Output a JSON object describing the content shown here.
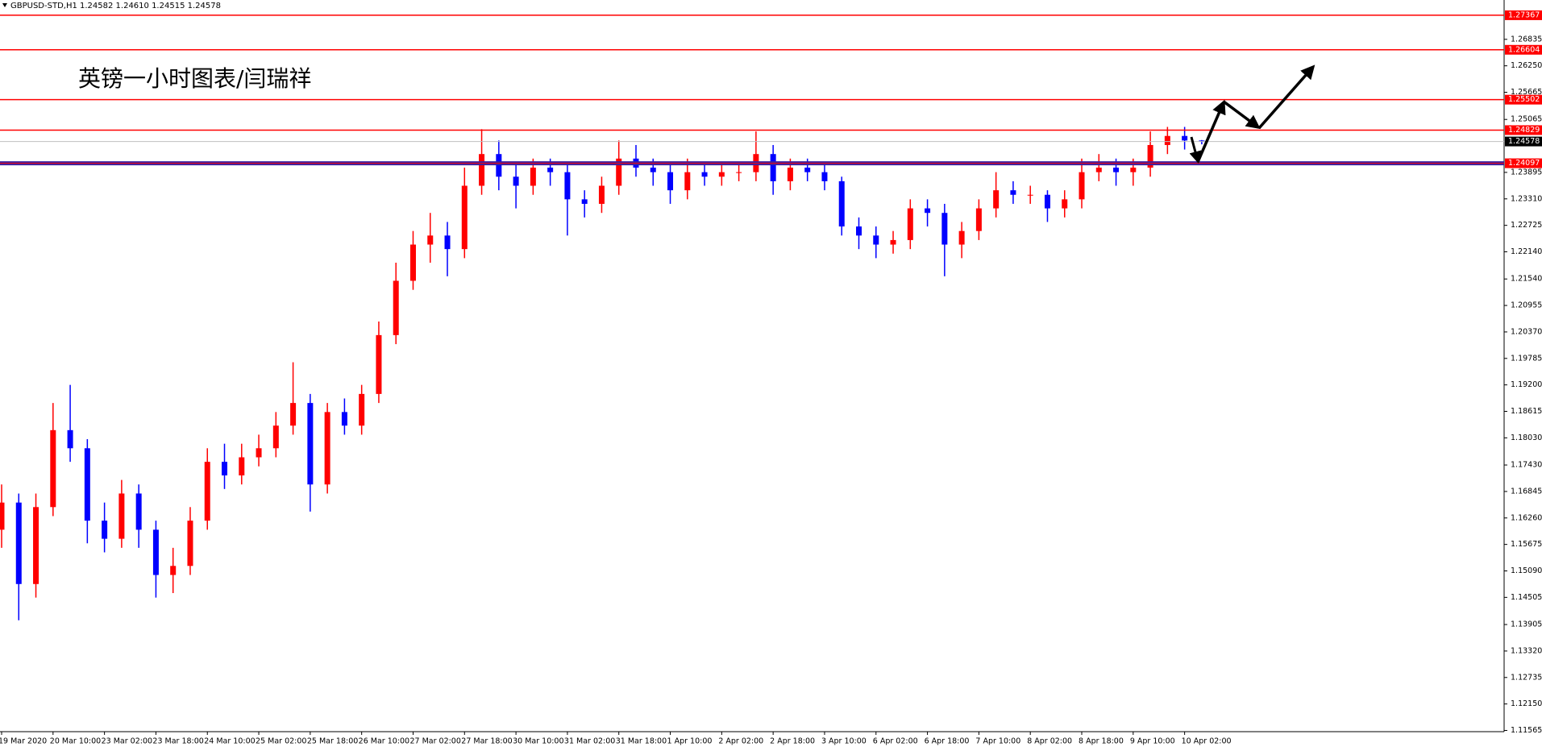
{
  "chart_data": {
    "type": "candlestick",
    "header": "GBPUSD-STD,H1  1.24582 1.24610 1.24515 1.24578",
    "title": "英镑一小时图表/闫瑞祥",
    "categories": [
      "19 Mar 2020",
      null,
      null,
      "20 Mar 10:00",
      null,
      null,
      "23 Mar 02:00",
      null,
      null,
      "23 Mar 18:00",
      null,
      null,
      "24 Mar 10:00",
      null,
      null,
      "25 Mar 02:00",
      null,
      null,
      "25 Mar 18:00",
      null,
      null,
      "26 Mar 10:00",
      null,
      null,
      "27 Mar 02:00",
      null,
      null,
      "27 Mar 18:00",
      null,
      null,
      "30 Mar 10:00",
      null,
      null,
      "31 Mar 02:00",
      null,
      null,
      "31 Mar 18:00",
      null,
      null,
      "1 Apr 10:00",
      null,
      null,
      "2 Apr 02:00",
      null,
      null,
      "2 Apr 18:00",
      null,
      null,
      "3 Apr 10:00",
      null,
      null,
      "6 Apr 02:00",
      null,
      null,
      "6 Apr 18:00",
      null,
      null,
      "7 Apr 10:00",
      null,
      null,
      "8 Apr 02:00",
      null,
      null,
      "8 Apr 18:00",
      null,
      null,
      "9 Apr 10:00",
      null,
      null,
      "10 Apr 02:00",
      null
    ],
    "open": [
      1.16,
      1.166,
      1.148,
      1.165,
      1.182,
      1.178,
      1.162,
      1.158,
      1.168,
      1.16,
      1.15,
      1.152,
      1.162,
      1.175,
      1.172,
      1.176,
      1.178,
      1.183,
      1.188,
      1.17,
      1.186,
      1.183,
      1.19,
      1.203,
      1.215,
      1.223,
      1.225,
      1.222,
      1.236,
      1.243,
      1.238,
      1.236,
      1.24,
      1.239,
      1.233,
      1.232,
      1.236,
      1.242,
      1.24,
      1.239,
      1.235,
      1.239,
      1.238,
      1.239,
      1.239,
      1.243,
      1.237,
      1.24,
      1.239,
      1.237,
      1.227,
      1.225,
      1.223,
      1.224,
      1.231,
      1.23,
      1.223,
      1.226,
      1.231,
      1.235,
      1.234,
      1.234,
      1.231,
      1.233,
      1.239,
      1.24,
      1.239,
      1.24,
      1.245,
      1.247,
      1.246
    ],
    "high": [
      1.17,
      1.168,
      1.168,
      1.188,
      1.192,
      1.18,
      1.166,
      1.171,
      1.17,
      1.162,
      1.156,
      1.165,
      1.178,
      1.179,
      1.179,
      1.181,
      1.186,
      1.197,
      1.19,
      1.188,
      1.189,
      1.192,
      1.206,
      1.219,
      1.226,
      1.23,
      1.228,
      1.24,
      1.2485,
      1.246,
      1.241,
      1.242,
      1.242,
      1.241,
      1.235,
      1.238,
      1.246,
      1.245,
      1.242,
      1.241,
      1.242,
      1.241,
      1.241,
      1.241,
      1.248,
      1.245,
      1.242,
      1.242,
      1.241,
      1.238,
      1.229,
      1.227,
      1.226,
      1.233,
      1.233,
      1.232,
      1.228,
      1.233,
      1.239,
      1.237,
      1.236,
      1.235,
      1.235,
      1.242,
      1.243,
      1.242,
      1.242,
      1.248,
      1.249,
      1.249,
      1.2461
    ],
    "low": [
      1.156,
      1.14,
      1.145,
      1.163,
      1.175,
      1.157,
      1.155,
      1.156,
      1.156,
      1.145,
      1.146,
      1.15,
      1.16,
      1.169,
      1.17,
      1.174,
      1.176,
      1.181,
      1.164,
      1.168,
      1.181,
      1.181,
      1.188,
      1.201,
      1.213,
      1.219,
      1.216,
      1.22,
      1.234,
      1.235,
      1.231,
      1.234,
      1.236,
      1.225,
      1.229,
      1.23,
      1.234,
      1.238,
      1.236,
      1.232,
      1.233,
      1.236,
      1.236,
      1.237,
      1.237,
      1.234,
      1.235,
      1.237,
      1.235,
      1.225,
      1.222,
      1.22,
      1.221,
      1.222,
      1.227,
      1.216,
      1.22,
      1.224,
      1.229,
      1.232,
      1.232,
      1.228,
      1.229,
      1.231,
      1.237,
      1.236,
      1.236,
      1.238,
      1.243,
      1.244,
      1.24515
    ],
    "close": [
      1.166,
      1.148,
      1.165,
      1.182,
      1.178,
      1.162,
      1.158,
      1.168,
      1.16,
      1.15,
      1.152,
      1.162,
      1.175,
      1.172,
      1.176,
      1.178,
      1.183,
      1.188,
      1.17,
      1.186,
      1.183,
      1.19,
      1.203,
      1.215,
      1.223,
      1.225,
      1.222,
      1.236,
      1.243,
      1.238,
      1.236,
      1.24,
      1.239,
      1.233,
      1.232,
      1.236,
      1.242,
      1.24,
      1.239,
      1.235,
      1.239,
      1.238,
      1.239,
      1.239,
      1.243,
      1.237,
      1.24,
      1.239,
      1.237,
      1.227,
      1.225,
      1.223,
      1.224,
      1.231,
      1.23,
      1.223,
      1.226,
      1.231,
      1.235,
      1.234,
      1.234,
      1.231,
      1.233,
      1.239,
      1.24,
      1.239,
      1.24,
      1.245,
      1.247,
      1.246,
      1.24578
    ],
    "up_color": "#ff0000",
    "down_color": "#0000ff",
    "ylim": [
      1.11538,
      1.27704
    ],
    "yticks": [
      1.26835,
      {
        "value": 1.2625,
        "label": "1.26250"
      },
      1.25665,
      1.25065,
      1.23895,
      {
        "value": 1.2331,
        "label": "1.23310"
      },
      1.22725,
      {
        "value": 1.2214,
        "label": "1.22140"
      },
      {
        "value": 1.2154,
        "label": "1.21540"
      },
      1.20955,
      {
        "value": 1.2037,
        "label": "1.20370"
      },
      1.19785,
      {
        "value": 1.192,
        "label": "1.19200"
      },
      1.18615,
      {
        "value": 1.1803,
        "label": "1.18030"
      },
      {
        "value": 1.1743,
        "label": "1.17430"
      },
      1.16845,
      {
        "value": 1.1626,
        "label": "1.16260"
      },
      1.15675,
      {
        "value": 1.1509,
        "label": "1.15090"
      },
      1.14505,
      1.13905,
      {
        "value": 1.1332,
        "label": "1.13320"
      },
      1.12735,
      {
        "value": 1.1215,
        "label": "1.12150"
      },
      1.11565
    ],
    "levels": [
      1.27367,
      1.26604,
      1.25502,
      1.24829,
      1.24097
    ],
    "level_colors": [
      "#ff0000",
      "#ff0000",
      "#ff0000",
      "#ff0000",
      "#3b1fa0"
    ],
    "current_price": 1.24578
  }
}
